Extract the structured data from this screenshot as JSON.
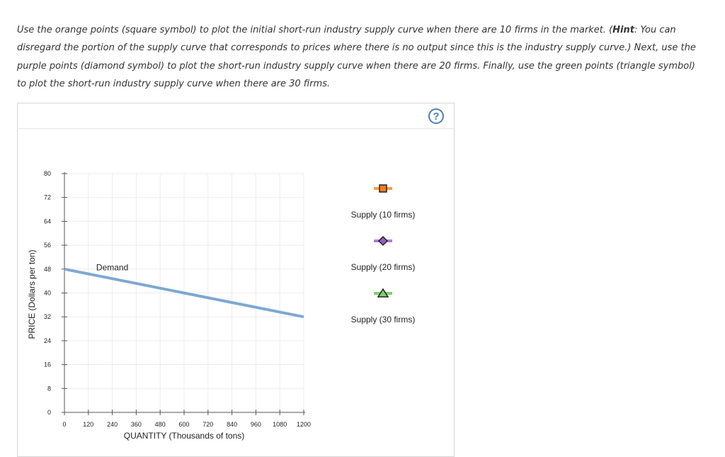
{
  "instructions": {
    "part1": "Use the orange points (square symbol) to plot the initial short-run industry supply curve when there are 10 firms in the market. (",
    "hint_label": "Hint",
    "part2": ": You can disregard the portion of the supply curve that corresponds to prices where there is no output since this is the industry supply curve.) Next, use the purple points (diamond symbol) to plot the short-run industry supply curve when there are 20 firms. Finally, use the green points (triangle symbol) to plot the short-run industry supply curve when there are 30 firms."
  },
  "help_button": {
    "label": "?"
  },
  "chart_data": {
    "type": "line",
    "xlabel": "QUANTITY (Thousands of tons)",
    "ylabel": "PRICE (Dollars per ton)",
    "xlim": [
      0,
      1200
    ],
    "ylim": [
      0,
      80
    ],
    "x_ticks": [
      0,
      120,
      240,
      360,
      480,
      600,
      720,
      840,
      960,
      1080,
      1200
    ],
    "y_ticks": [
      0,
      8,
      16,
      24,
      32,
      40,
      48,
      56,
      64,
      72,
      80
    ],
    "grid": true,
    "series": [
      {
        "name": "Demand",
        "color": "#7fa8d1",
        "x": [
          0,
          1200
        ],
        "y": [
          48,
          32
        ]
      }
    ],
    "legend": [
      {
        "name": "Supply (10 firms)",
        "symbol": "square",
        "line_color": "#f4a040",
        "fill": "#f47c20"
      },
      {
        "name": "Supply (20 firms)",
        "symbol": "diamond",
        "line_color": "#b07fd6",
        "fill": "#9a5cc6"
      },
      {
        "name": "Supply (30 firms)",
        "symbol": "triangle",
        "line_color": "#7ed06e",
        "fill": "#7ed06e"
      }
    ],
    "legend_position": "right"
  }
}
